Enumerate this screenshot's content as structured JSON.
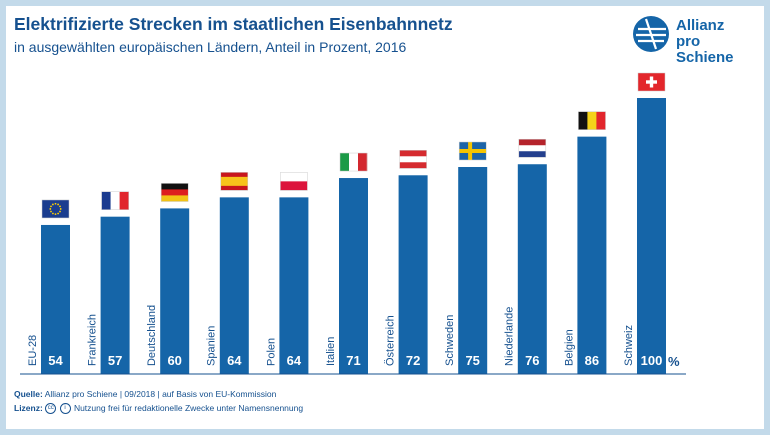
{
  "title": "Elektrifizierte Strecken im staatlichen Eisenbahnnetz",
  "subtitle": "in ausgewählten europäischen Ländern, Anteil in Prozent, 2016",
  "logo": {
    "line1": "Allianz",
    "line2": "pro Schiene"
  },
  "footer": {
    "source_label": "Quelle:",
    "source_text": "Allianz pro Schiene | 09/2018 | auf Basis von EU-Kommission",
    "license_label": "Lizenz:",
    "license_icon_cc": "cc",
    "license_icon_by": "i",
    "license_text": "Nutzung frei für redaktionelle Zwecke unter Namensnennung"
  },
  "colors": {
    "bar": "#1565a8",
    "text": "#16518f",
    "frame": "#c3daea"
  },
  "chart_data": {
    "type": "bar",
    "title": "Elektrifizierte Strecken im staatlichen Eisenbahnnetz",
    "subtitle": "in ausgewählten europäischen Ländern, Anteil in Prozent, 2016",
    "categories": [
      "EU-28",
      "Frankreich",
      "Deutschland",
      "Spanien",
      "Polen",
      "Italien",
      "Österreich",
      "Schweden",
      "Niederlande",
      "Belgien",
      "Schweiz"
    ],
    "values": [
      54,
      57,
      60,
      64,
      64,
      71,
      72,
      75,
      76,
      86,
      100
    ],
    "value_labels": [
      "54",
      "57",
      "60",
      "64",
      "64",
      "71",
      "72",
      "75",
      "76",
      "86",
      "100"
    ],
    "unit": "%",
    "flags": [
      "eu",
      "fr",
      "de",
      "es",
      "pl",
      "it",
      "at",
      "se",
      "nl",
      "be",
      "ch"
    ],
    "ylim": [
      0,
      100
    ],
    "grid": false,
    "legend": "none"
  }
}
